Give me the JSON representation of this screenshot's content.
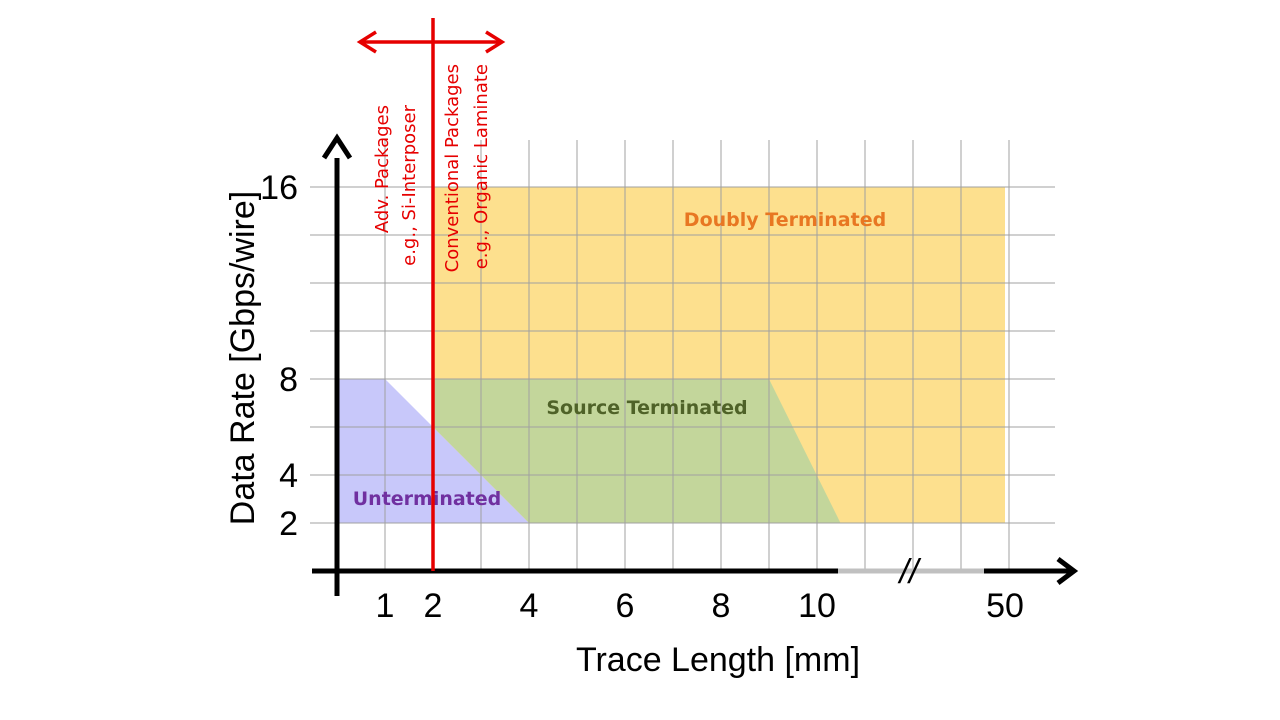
{
  "chart_data": {
    "type": "area",
    "title": "",
    "xlabel": "Trace Length [mm]",
    "ylabel": "Data Rate [Gbps/wire]",
    "x_ticks": [
      "1",
      "2",
      "4",
      "6",
      "8",
      "10",
      "50"
    ],
    "y_ticks": [
      "2",
      "4",
      "8",
      "16"
    ],
    "axis_break_symbol": "//",
    "grid": true,
    "regions": [
      {
        "name": "Doubly Terminated",
        "label": "Doubly Terminated",
        "color": "#fde08e",
        "label_color": "#e87722",
        "polygon": [
          [
            2,
            2
          ],
          [
            50,
            2
          ],
          [
            50,
            16
          ],
          [
            2,
            16
          ]
        ]
      },
      {
        "name": "Source Terminated",
        "label": "Source Terminated",
        "color": "#c3d69b",
        "label_color": "#4f6228",
        "polygon": [
          [
            2,
            6
          ],
          [
            2,
            8
          ],
          [
            9,
            8
          ],
          [
            15,
            2
          ],
          [
            4,
            2
          ]
        ]
      },
      {
        "name": "Unterminated",
        "label": "Unterminated",
        "color": "#c8c8fa",
        "label_color": "#7030a0",
        "polygon": [
          [
            0,
            2
          ],
          [
            0,
            8
          ],
          [
            1,
            8
          ],
          [
            4,
            2
          ]
        ]
      }
    ],
    "annotations": [
      {
        "name": "package-boundary",
        "x": 2,
        "color": "#e60000",
        "left_lines": [
          "Adv. Packages",
          "e.g., Si-Interposer"
        ],
        "right_lines": [
          "Conventional Packages",
          "e.g., Organic Laminate"
        ]
      }
    ]
  }
}
